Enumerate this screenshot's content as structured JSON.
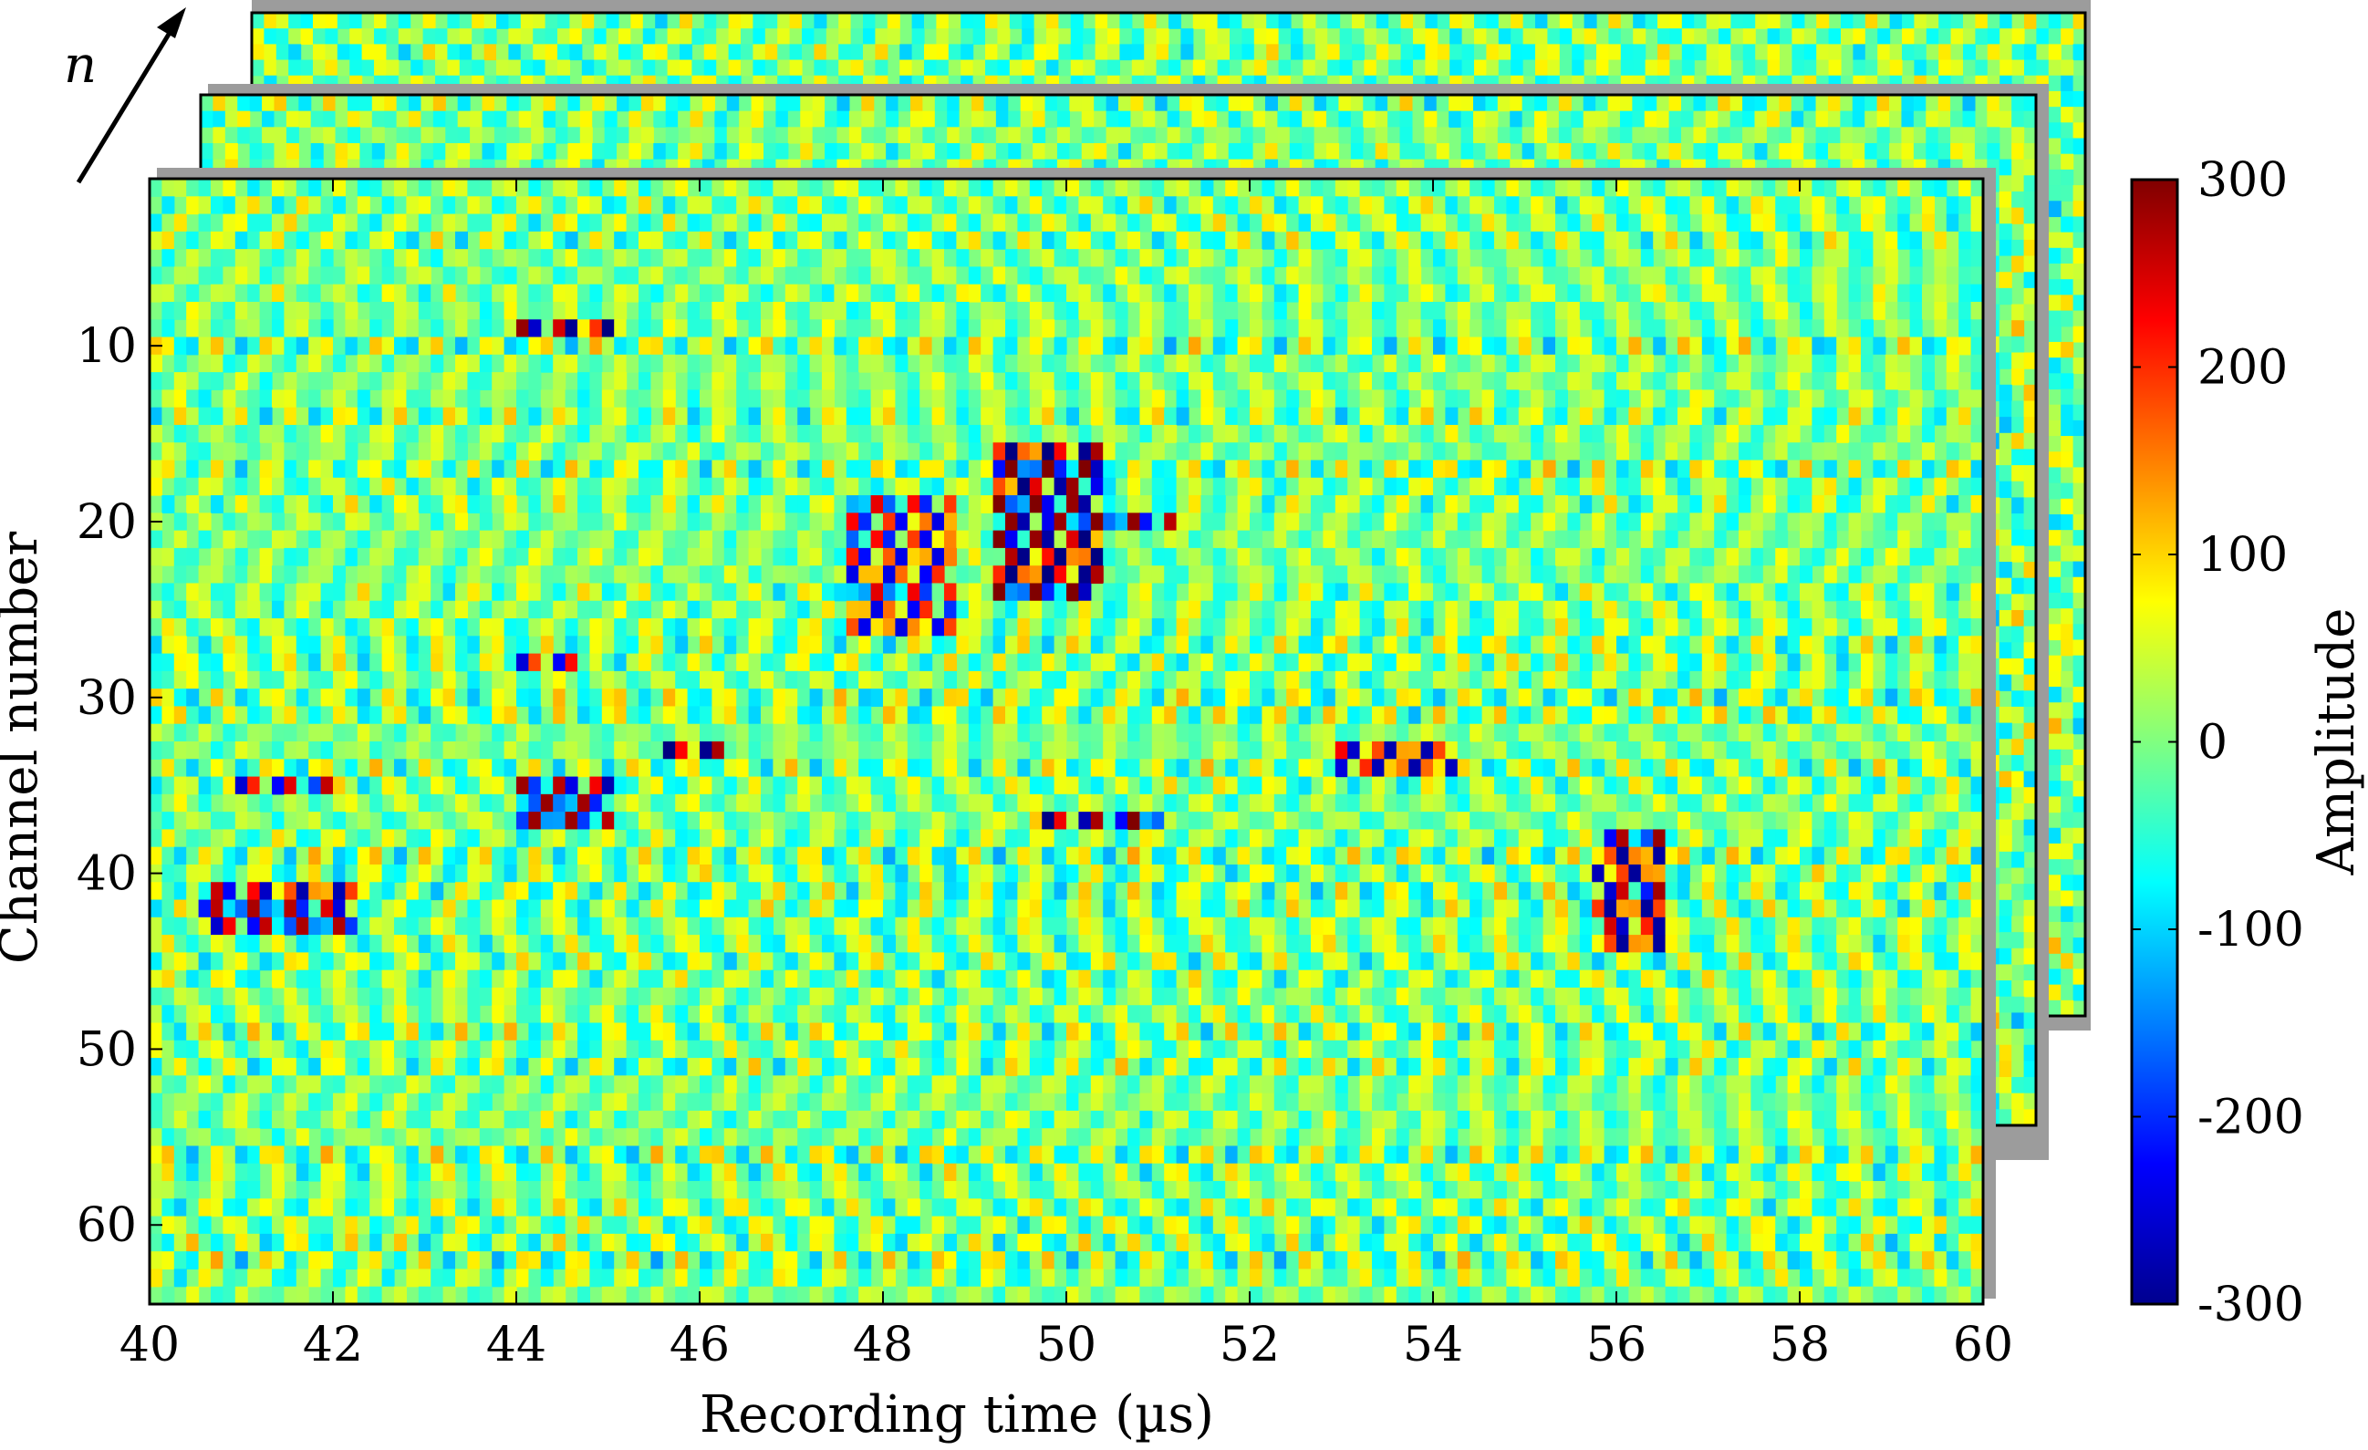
{
  "chart_data": {
    "type": "heatmap",
    "description_view": "stack of three B-scan panels (frame index n increases into the page)",
    "stack_label": "n",
    "stack_frames": 3,
    "xlabel": "Recording time (µs)",
    "ylabel": "Channel number",
    "xlim": [
      40,
      60
    ],
    "ylim": [
      1,
      64
    ],
    "y_reversed": true,
    "x_ticks": [
      "40",
      "42",
      "44",
      "46",
      "48",
      "50",
      "52",
      "54",
      "56",
      "58",
      "60"
    ],
    "y_ticks": [
      "10",
      "20",
      "30",
      "40",
      "50",
      "60"
    ],
    "colorbar": {
      "label": "Amplitude",
      "colormap": "jet",
      "range": [
        -300,
        300
      ],
      "ticks": [
        "300",
        "200",
        "100",
        "0",
        "-100",
        "-200",
        "-300"
      ]
    },
    "colormap_stops": [
      "#00008f",
      "#0000ff",
      "#00ffff",
      "#ffff00",
      "#ff0000",
      "#800000"
    ],
    "background_amplitude": 0,
    "strong_echoes": [
      {
        "t_start": 44.0,
        "t_end": 45.0,
        "channels": [
          9,
          9
        ],
        "amplitude": -280
      },
      {
        "t_start": 45.6,
        "t_end": 46.4,
        "channels": [
          33,
          33
        ],
        "amplitude": 290
      },
      {
        "t_start": 44.0,
        "t_end": 45.0,
        "channels": [
          35,
          37
        ],
        "amplitude": -260
      },
      {
        "t_start": 40.6,
        "t_end": 42.2,
        "channels": [
          41,
          43
        ],
        "amplitude": 250
      },
      {
        "t_start": 49.2,
        "t_end": 50.4,
        "channels": [
          16,
          24
        ],
        "amplitude": -290
      },
      {
        "t_start": 49.8,
        "t_end": 51.2,
        "channels": [
          20,
          20
        ],
        "amplitude": 270
      },
      {
        "t_start": 49.6,
        "t_end": 51.0,
        "channels": [
          37,
          37
        ],
        "amplitude": -280
      },
      {
        "t_start": 55.8,
        "t_end": 56.5,
        "channels": [
          38,
          44
        ],
        "amplitude": 260
      },
      {
        "t_start": 53.0,
        "t_end": 54.3,
        "channels": [
          33,
          34
        ],
        "amplitude": -250
      },
      {
        "t_start": 41.0,
        "t_end": 42.0,
        "channels": [
          35,
          35
        ],
        "amplitude": 240
      },
      {
        "t_start": 44.0,
        "t_end": 44.8,
        "channels": [
          28,
          28
        ],
        "amplitude": -230
      },
      {
        "t_start": 47.6,
        "t_end": 48.8,
        "channels": [
          19,
          26
        ],
        "amplitude": 220
      }
    ]
  }
}
